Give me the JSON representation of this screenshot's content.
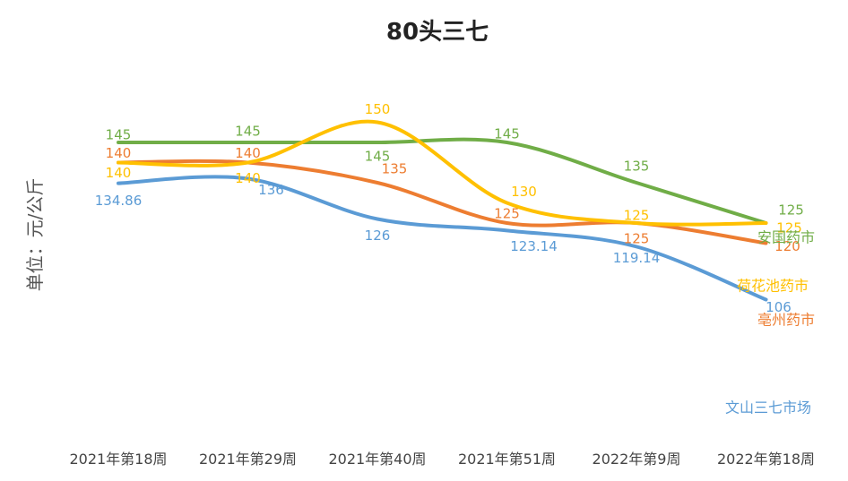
{
  "chart_data": {
    "type": "line",
    "title": "80头三七",
    "ylabel": "单位：元/公斤",
    "xlabel": "",
    "ylim": [
      100,
      155
    ],
    "grid": false,
    "legend": "inline-right",
    "categories": [
      "2021年第18周",
      "2021年第29周",
      "2021年第40周",
      "2021年第51周",
      "2022年第9周",
      "2022年第18周"
    ],
    "series": [
      {
        "name": "安国药市",
        "color": "#70AD47",
        "values": [
          145,
          145,
          145,
          145,
          135,
          125
        ],
        "labels": [
          "145",
          "145",
          "145",
          "145",
          "135",
          "125"
        ]
      },
      {
        "name": "亳州药市",
        "color": "#ED7D31",
        "values": [
          140,
          140,
          135,
          125,
          125,
          120
        ],
        "labels": [
          "140",
          "140",
          "135",
          "125",
          "125",
          "120"
        ]
      },
      {
        "name": "荷花池药市",
        "color": "#FFC000",
        "values": [
          140,
          140,
          150,
          130,
          125,
          125
        ],
        "labels": [
          "140",
          "140",
          "150",
          "130",
          "125",
          "125"
        ]
      },
      {
        "name": "文山三七市场",
        "color": "#5B9BD5",
        "values": [
          134.86,
          136,
          126,
          123.14,
          119.14,
          106
        ],
        "labels": [
          "134.86",
          "136",
          "126",
          "123.14",
          "119.14",
          "106"
        ]
      }
    ]
  }
}
